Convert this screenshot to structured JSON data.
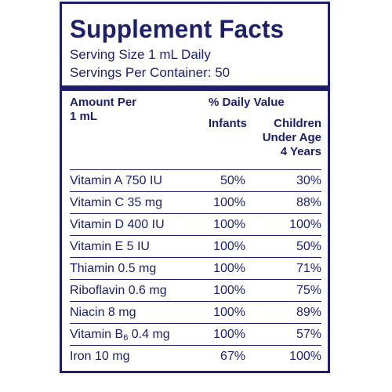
{
  "panel": {
    "title": "Supplement Facts",
    "serving_size": "Serving Size 1 mL Daily",
    "servings_per_container": "Servings Per Container: 50"
  },
  "header": {
    "amount_per_line1": "Amount Per",
    "amount_per_line2": "1 mL",
    "daily_value": "% Daily Value",
    "infants": "Infants",
    "children_line1": "Children",
    "children_line2": "Under Age",
    "children_line3": "4 Years"
  },
  "rows": [
    {
      "nutrient": "Vitamin A 750 IU",
      "infants": "50%",
      "children": "30%"
    },
    {
      "nutrient": "Vitamin C 35 mg",
      "infants": "100%",
      "children": "88%"
    },
    {
      "nutrient": "Vitamin D 400 IU",
      "infants": "100%",
      "children": "100%"
    },
    {
      "nutrient": "Vitamin E 5 IU",
      "infants": "100%",
      "children": "50%"
    },
    {
      "nutrient": "Thiamin 0.5 mg",
      "infants": "100%",
      "children": "71%"
    },
    {
      "nutrient": "Riboflavin 0.6 mg",
      "infants": "100%",
      "children": "75%"
    },
    {
      "nutrient": "Niacin 8 mg",
      "infants": "100%",
      "children": "89%"
    },
    {
      "nutrient_prefix": "Vitamin B",
      "nutrient_sub": "6",
      "nutrient_suffix": " 0.4 mg",
      "infants": "100%",
      "children": "57%"
    },
    {
      "nutrient": "Iron 10 mg",
      "infants": "67%",
      "children": "100%"
    }
  ],
  "colors": {
    "ink": "#1d1f6e",
    "background": "#ffffff"
  }
}
